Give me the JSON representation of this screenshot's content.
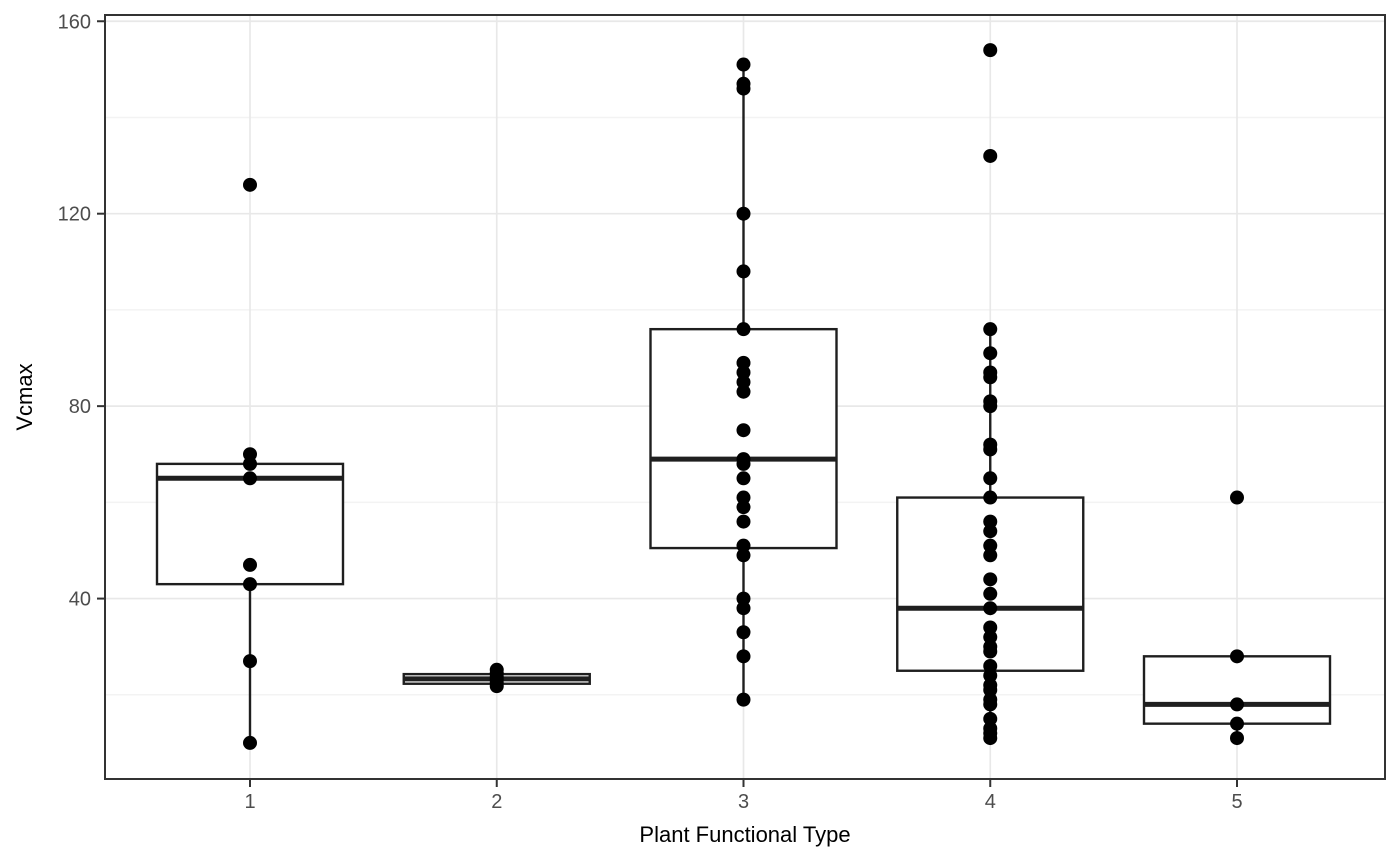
{
  "chart_data": {
    "type": "boxplot",
    "title": "",
    "xlabel": "Plant Functional Type",
    "ylabel": "Vcmax",
    "categories": [
      "1",
      "2",
      "3",
      "4",
      "5"
    ],
    "ylim": [
      2.5,
      161.3
    ],
    "yticks_major": [
      40,
      80,
      120,
      160
    ],
    "yticks_minor": [
      20,
      60,
      100,
      140
    ],
    "grid": true,
    "legend": false,
    "series": [
      {
        "category": "1",
        "box": {
          "q1": 43,
          "median": 65,
          "q3": 68,
          "whisker_low": 10,
          "whisker_high": 70
        },
        "outliers": [
          126
        ],
        "points": [
          126,
          70,
          68,
          65,
          47,
          43,
          27,
          10
        ]
      },
      {
        "category": "2",
        "box": {
          "q1": 22.3,
          "median": 23.3,
          "q3": 24.3,
          "whisker_low": 21.8,
          "whisker_high": 25.2
        },
        "outliers": [],
        "points": [
          25.2,
          24.5,
          23.8,
          23.2,
          22.5,
          21.8
        ]
      },
      {
        "category": "3",
        "box": {
          "q1": 50.5,
          "median": 69,
          "q3": 96,
          "whisker_low": 19,
          "whisker_high": 151
        },
        "outliers": [],
        "points": [
          151,
          147,
          146,
          120,
          108,
          96,
          89,
          87,
          85,
          83,
          75,
          69,
          68,
          65,
          61,
          59,
          56,
          51,
          49,
          40,
          38,
          33,
          28,
          19
        ]
      },
      {
        "category": "4",
        "box": {
          "q1": 25,
          "median": 38,
          "q3": 61,
          "whisker_low": 11,
          "whisker_high": 96
        },
        "outliers": [
          154,
          132
        ],
        "points": [
          154,
          132,
          96,
          91,
          87,
          86,
          81,
          80,
          72,
          71,
          65,
          61,
          56,
          54,
          51,
          49,
          44,
          41,
          38,
          34,
          32,
          30,
          29,
          26,
          24,
          22,
          21,
          19,
          18,
          15,
          13,
          12,
          11
        ]
      },
      {
        "category": "5",
        "box": {
          "q1": 14,
          "median": 18,
          "q3": 28,
          "whisker_low": 11,
          "whisker_high": 28
        },
        "outliers": [
          61
        ],
        "points": [
          61,
          28,
          18,
          14,
          11
        ]
      }
    ],
    "colors": {
      "background": "#ffffff",
      "panel_border": "#333333",
      "grid_major": "#e8e8e8",
      "grid_minor": "#f3f3f3",
      "box_stroke": "#1f1f1f",
      "box_fill": "#ffffff",
      "median": "#1f1f1f",
      "point": "#000000",
      "tick": "#333333",
      "tick_label": "#4d4d4d",
      "axis_title": "#000000"
    }
  }
}
